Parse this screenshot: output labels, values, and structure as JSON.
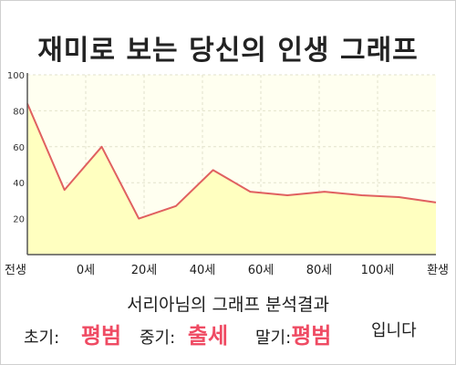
{
  "title": "재미로 보는 당신의 인생 그래프",
  "owner_line": "서리아님의 그래프 분석결과",
  "results": {
    "early_label": "초기:",
    "early_value": "평범",
    "middle_label": "중기:",
    "middle_value": "출세",
    "late_label": "말기:",
    "late_value": "평범",
    "ending": "입니다"
  },
  "colors": {
    "line": "#e06060",
    "fill": "#ffffc0",
    "plot_bg": "#fffff0",
    "accent_text": "#ef4b63"
  },
  "chart_data": {
    "type": "area",
    "title": "재미로 보는 당신의 인생 그래프",
    "xlabel": "",
    "ylabel": "",
    "x_tick_labels": [
      "전생",
      "0세",
      "20세",
      "40세",
      "60세",
      "80세",
      "100세",
      "환생"
    ],
    "y_ticks": [
      20,
      40,
      60,
      80,
      100
    ],
    "ylim": [
      0,
      100
    ],
    "grid": true,
    "series": [
      {
        "values": [
          84,
          36,
          60,
          20,
          27,
          47,
          35,
          33,
          35,
          33,
          32,
          29
        ]
      }
    ]
  }
}
